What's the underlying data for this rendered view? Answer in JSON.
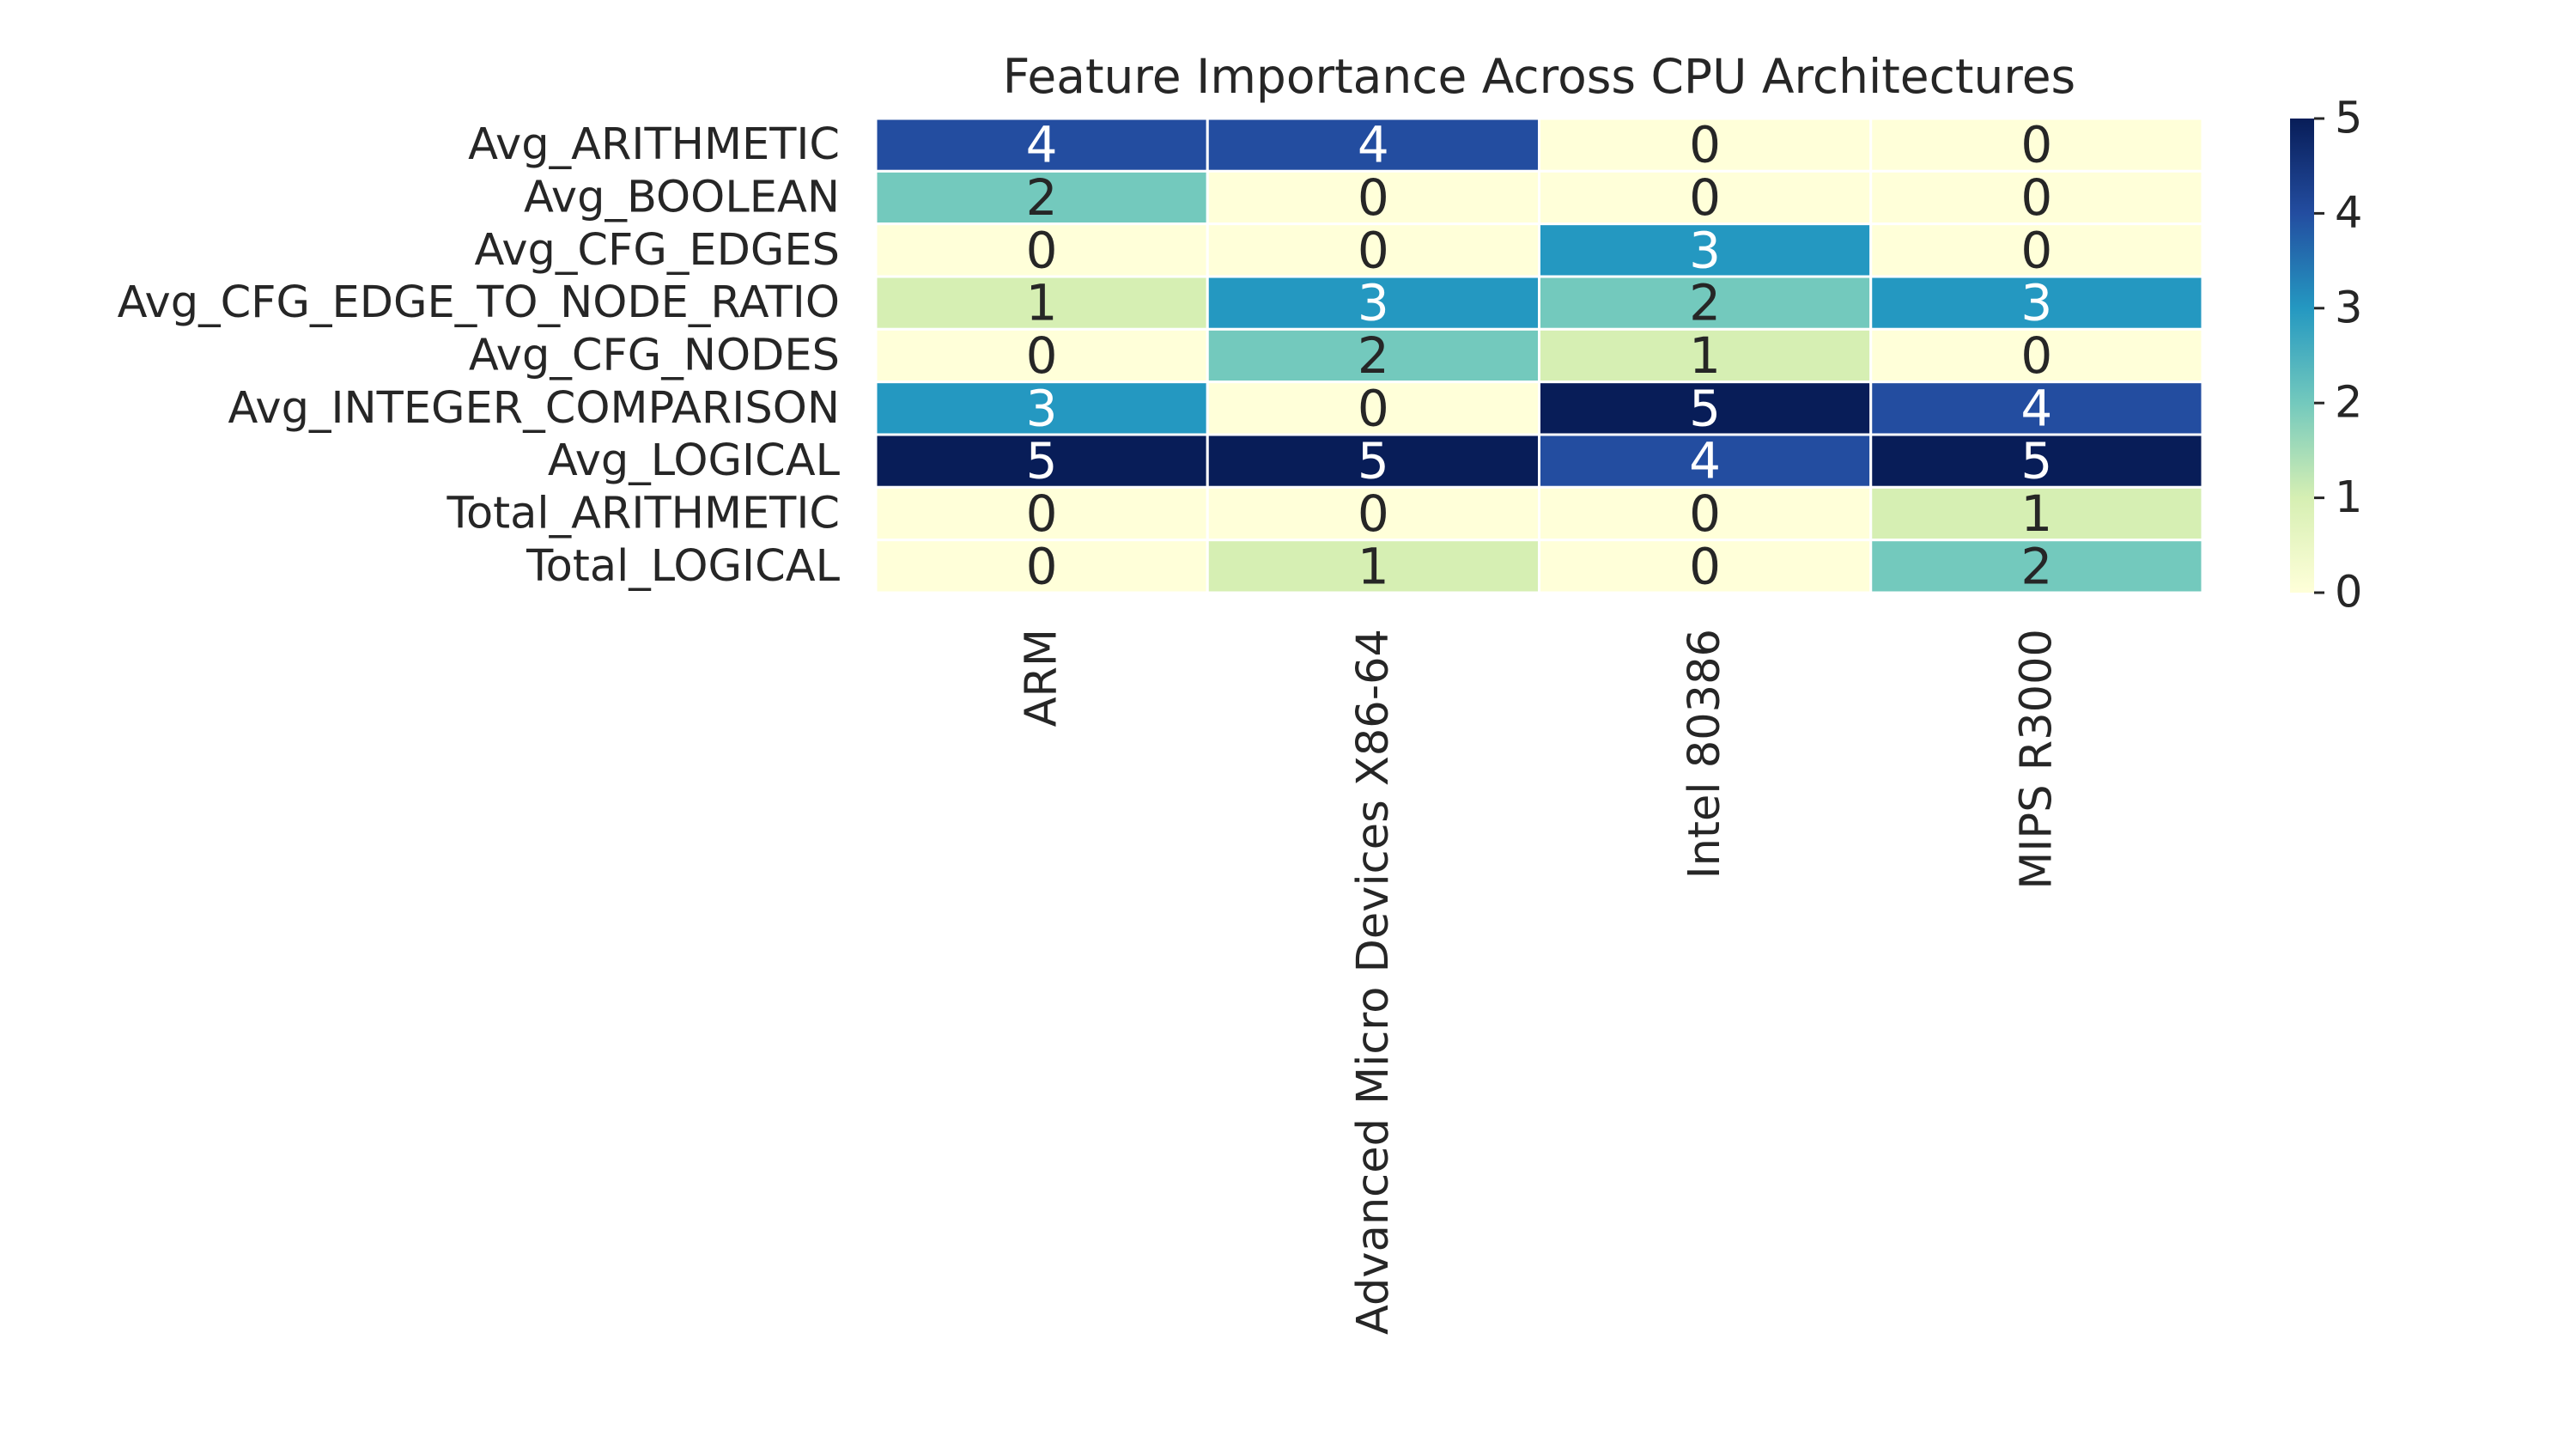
{
  "chart_data": {
    "type": "heatmap",
    "title": "Feature Importance Across CPU Architectures",
    "xlabel": "",
    "ylabel": "",
    "x_categories": [
      "ARM",
      "Advanced Micro Devices X86-64",
      "Intel 80386",
      "MIPS R3000"
    ],
    "y_categories": [
      "Avg_ARITHMETIC",
      "Avg_BOOLEAN",
      "Avg_CFG_EDGES",
      "Avg_CFG_EDGE_TO_NODE_RATIO",
      "Avg_CFG_NODES",
      "Avg_INTEGER_COMPARISON",
      "Avg_LOGICAL",
      "Total_ARITHMETIC",
      "Total_LOGICAL"
    ],
    "values": [
      [
        4,
        4,
        0,
        0
      ],
      [
        2,
        0,
        0,
        0
      ],
      [
        0,
        0,
        3,
        0
      ],
      [
        1,
        3,
        2,
        3
      ],
      [
        0,
        2,
        1,
        0
      ],
      [
        3,
        0,
        5,
        4
      ],
      [
        5,
        5,
        4,
        5
      ],
      [
        0,
        0,
        0,
        1
      ],
      [
        0,
        1,
        0,
        2
      ]
    ],
    "value_range": [
      0,
      5
    ],
    "colormap": "YlGnBu",
    "colorbar_ticks": [
      0,
      1,
      2,
      3,
      4,
      5
    ],
    "annotations": true,
    "grid": false,
    "colors": {
      "0": "#ffffd9",
      "1": "#d6efb3",
      "2": "#73c9bd",
      "3": "#2498c1",
      "4": "#234da0",
      "5": "#081d58"
    }
  }
}
